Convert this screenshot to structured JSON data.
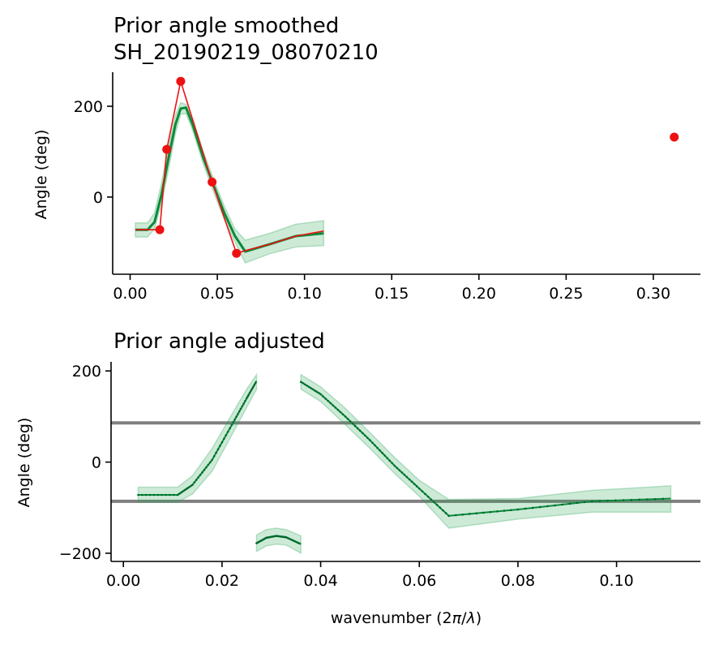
{
  "chart_data": [
    {
      "type": "line",
      "title": "Prior angle smoothed\nSH_20190219_08070210",
      "title_lines": [
        "Prior angle smoothed",
        "SH_20190219_08070210"
      ],
      "xlabel": "",
      "ylabel": "Angle (deg)",
      "xlim": [
        -0.01,
        0.327
      ],
      "ylim": [
        -170,
        275
      ],
      "xticks": [
        0.0,
        0.05,
        0.1,
        0.15,
        0.2,
        0.25,
        0.3
      ],
      "xtick_labels": [
        "0.00",
        "0.05",
        "0.10",
        "0.15",
        "0.20",
        "0.25",
        "0.30"
      ],
      "yticks": [
        0,
        200
      ],
      "ytick_labels": [
        "0",
        "200"
      ],
      "grid": false,
      "series": [
        {
          "style": "band",
          "color": "#1b9e4b",
          "x": [
            0.003,
            0.01,
            0.014,
            0.018,
            0.022,
            0.026,
            0.029,
            0.032,
            0.036,
            0.042,
            0.048,
            0.054,
            0.06,
            0.066,
            0.08,
            0.095,
            0.111
          ],
          "upper": [
            -57,
            -57,
            -35,
            30,
            110,
            180,
            208,
            204,
            170,
            100,
            38,
            -20,
            -70,
            -95,
            -80,
            -60,
            -52
          ],
          "lower": [
            -88,
            -88,
            -70,
            -15,
            60,
            140,
            182,
            184,
            145,
            72,
            10,
            -50,
            -98,
            -145,
            -125,
            -110,
            -107
          ]
        },
        {
          "style": "line",
          "color": "#0a8a3a",
          "x": [
            0.003,
            0.01,
            0.014,
            0.018,
            0.022,
            0.026,
            0.029,
            0.032,
            0.036,
            0.042,
            0.048,
            0.054,
            0.06,
            0.066,
            0.08,
            0.095,
            0.111
          ],
          "y": [
            -72,
            -72,
            -55,
            5,
            85,
            160,
            195,
            197,
            158,
            86,
            24,
            -35,
            -85,
            -120,
            -104,
            -86,
            -80
          ]
        },
        {
          "style": "line-markers",
          "color": "#ee1111",
          "x": [
            0.003,
            0.017,
            0.021,
            0.029,
            0.047,
            0.061,
            0.066,
            0.08,
            0.095,
            0.111
          ],
          "y": [
            -72,
            -72,
            105,
            255,
            33,
            -124,
            -118,
            -104,
            -86,
            -75
          ],
          "markers": [
            {
              "x": 0.017,
              "y": -72
            },
            {
              "x": 0.021,
              "y": 105
            },
            {
              "x": 0.029,
              "y": 255
            },
            {
              "x": 0.047,
              "y": 33
            },
            {
              "x": 0.061,
              "y": -124
            },
            {
              "x": 0.312,
              "y": 132
            }
          ]
        }
      ]
    },
    {
      "type": "line",
      "title": "Prior angle adjusted",
      "xlabel": "wavenumber (2π/λ)",
      "xlabel_parts": {
        "pre": "wavenumber (2",
        "pi": "π",
        "slash": "/",
        "lambda": "λ",
        "post": ")"
      },
      "ylabel": "Angle (deg)",
      "xlim": [
        -0.0025,
        0.117
      ],
      "ylim": [
        -218,
        220
      ],
      "xticks": [
        0.0,
        0.02,
        0.04,
        0.06,
        0.08,
        0.1
      ],
      "xtick_labels": [
        "0.00",
        "0.02",
        "0.04",
        "0.06",
        "0.08",
        "0.10"
      ],
      "yticks": [
        -200,
        0,
        200
      ],
      "ytick_labels": [
        "−200",
        "0",
        "200"
      ],
      "grid": false,
      "hlines": [
        {
          "y": 86,
          "color": "#808080"
        },
        {
          "y": -86,
          "color": "#808080"
        }
      ],
      "series": [
        {
          "style": "band",
          "color": "#1b9e4b",
          "segments": [
            {
              "x": [
                0.003,
                0.011,
                0.014,
                0.018,
                0.022,
                0.025,
                0.027
              ],
              "upper": [
                -55,
                -55,
                -30,
                30,
                105,
                160,
                192
              ],
              "lower": [
                -88,
                -88,
                -70,
                -20,
                60,
                120,
                160
              ]
            },
            {
              "x": [
                0.027,
                0.029,
                0.031,
                0.033,
                0.036
              ],
              "upper": [
                -160,
                -148,
                -145,
                -148,
                -162
              ],
              "lower": [
                -196,
                -184,
                -180,
                -182,
                -200
              ]
            },
            {
              "x": [
                0.036,
                0.04,
                0.045,
                0.05,
                0.055,
                0.06,
                0.066,
                0.08,
                0.095,
                0.111
              ],
              "upper": [
                192,
                165,
                118,
                65,
                10,
                -40,
                -82,
                -80,
                -62,
                -52
              ],
              "lower": [
                160,
                133,
                82,
                30,
                -25,
                -75,
                -145,
                -125,
                -110,
                -110
              ]
            }
          ]
        },
        {
          "style": "line",
          "color": "#0a8a3a",
          "segments": [
            {
              "x": [
                0.003,
                0.011,
                0.014,
                0.018,
                0.022,
                0.025,
                0.027
              ],
              "y": [
                -72,
                -72,
                -50,
                5,
                82,
                140,
                178
              ]
            },
            {
              "x": [
                0.027,
                0.029,
                0.031,
                0.033,
                0.036
              ],
              "y": [
                -178,
                -166,
                -162,
                -165,
                -180
              ]
            },
            {
              "x": [
                0.036,
                0.04,
                0.045,
                0.05,
                0.055,
                0.06,
                0.066,
                0.08,
                0.095,
                0.111
              ],
              "y": [
                176,
                149,
                100,
                48,
                -8,
                -58,
                -118,
                -104,
                -86,
                -80
              ]
            }
          ]
        }
      ]
    }
  ]
}
